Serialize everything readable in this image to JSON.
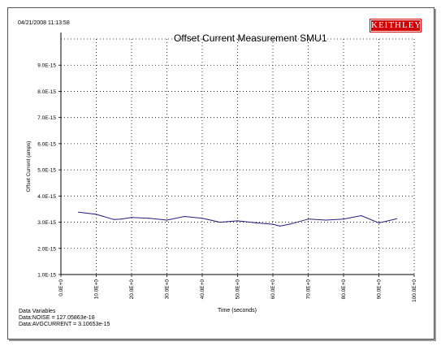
{
  "header": {
    "timestamp": "04/21/2008 11:13:58",
    "brand": "KEITHLEY"
  },
  "footer": {
    "heading": "Data Variables",
    "lines": [
      "Data:NOISE = 127.05863e-18",
      "Data:AVGCURRENT = 3.10653e-15"
    ]
  },
  "colors": {
    "line": "#1f1f7a",
    "brand": "#d20000",
    "grid": "#000000"
  },
  "chart_data": {
    "type": "line",
    "title": "Offset Current Measurement SMU1",
    "xlabel": "Time (seconds)",
    "ylabel": "Offset Current (amps)",
    "xlim": [
      0,
      100
    ],
    "ylim": [
      1e-15,
      1e-14
    ],
    "xticks": [
      "0.0E+0",
      "10.0E+0",
      "20.0E+0",
      "30.0E+0",
      "40.0E+0",
      "50.0E+0",
      "60.0E+0",
      "70.0E+0",
      "80.0E+0",
      "90.0E+0",
      "100.0E+0"
    ],
    "yticks": [
      "1.0E-15",
      "2.0E-15",
      "3.0E-15",
      "4.0E-15",
      "5.0E-15",
      "6.0E-15",
      "7.0E-15",
      "8.0E-15",
      "9.0E-15"
    ],
    "grid": true,
    "x": [
      5,
      10,
      15,
      17,
      20,
      25,
      30,
      35,
      40,
      45,
      50,
      55,
      60,
      62,
      65,
      70,
      75,
      80,
      85,
      90,
      95
    ],
    "y": [
      3.38e-15,
      3.3e-15,
      3.1e-15,
      3.12e-15,
      3.18e-15,
      3.15e-15,
      3.08e-15,
      3.22e-15,
      3.15e-15,
      3e-15,
      3.05e-15,
      2.98e-15,
      2.92e-15,
      2.85e-15,
      2.93e-15,
      3.12e-15,
      3.08e-15,
      3.12e-15,
      3.25e-15,
      2.97e-15,
      3.13e-15
    ]
  }
}
